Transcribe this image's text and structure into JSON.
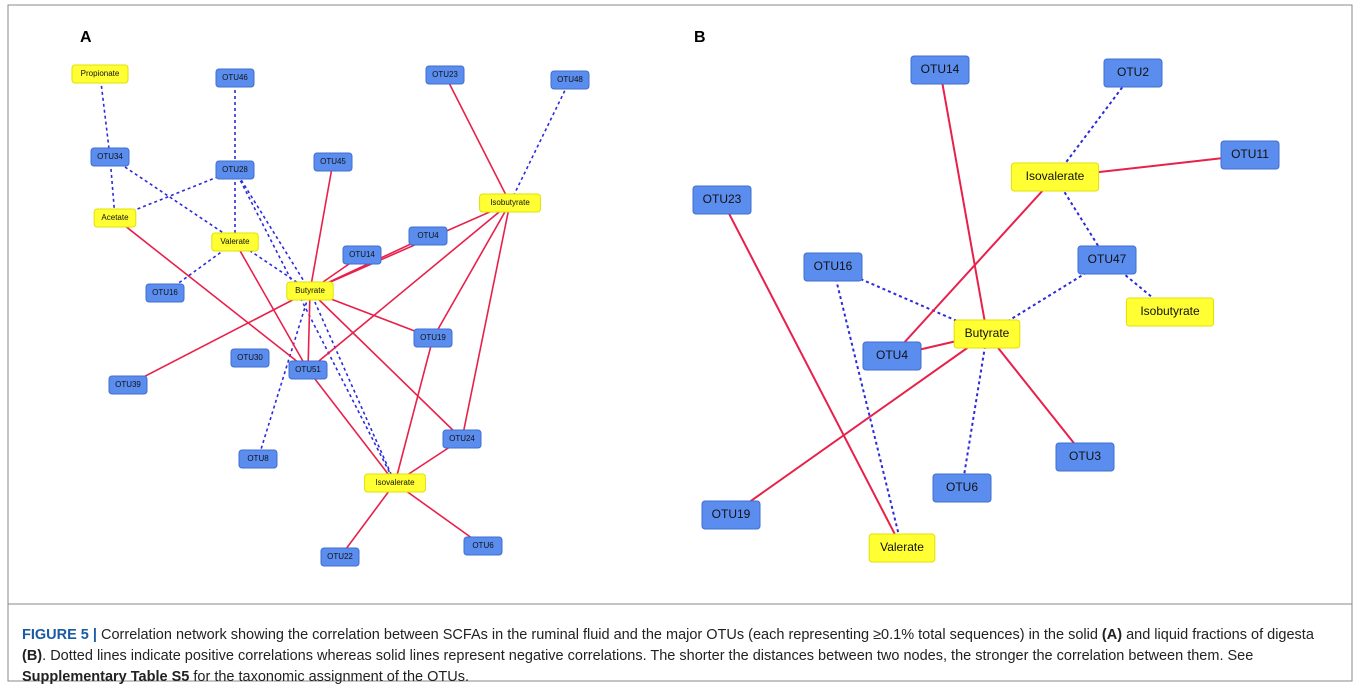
{
  "panels": [
    {
      "label": "A",
      "nodes": [
        {
          "label": "Propionate",
          "color": "#ffff33"
        },
        {
          "label": "OTU46",
          "color": "#5b8def"
        },
        {
          "label": "OTU23",
          "color": "#5b8def"
        },
        {
          "label": "OTU48",
          "color": "#5b8def"
        },
        {
          "label": "OTU34",
          "color": "#5b8def"
        },
        {
          "label": "OTU28",
          "color": "#5b8def"
        },
        {
          "label": "OTU45",
          "color": "#5b8def"
        },
        {
          "label": "Isobutyrate",
          "color": "#ffff33"
        },
        {
          "label": "Acetate",
          "color": "#ffff33"
        },
        {
          "label": "Valerate",
          "color": "#ffff33"
        },
        {
          "label": "OTU4",
          "color": "#5b8def"
        },
        {
          "label": "OTU14",
          "color": "#5b8def"
        },
        {
          "label": "Butyrate",
          "color": "#ffff33"
        },
        {
          "label": "OTU16",
          "color": "#5b8def"
        },
        {
          "label": "OTU19",
          "color": "#5b8def"
        },
        {
          "label": "OTU30",
          "color": "#5b8def"
        },
        {
          "label": "OTU51",
          "color": "#5b8def"
        },
        {
          "label": "OTU39",
          "color": "#5b8def"
        },
        {
          "label": "OTU24",
          "color": "#5b8def"
        },
        {
          "label": "OTU8",
          "color": "#5b8def"
        },
        {
          "label": "Isovalerate",
          "color": "#ffff33"
        },
        {
          "label": "OTU6",
          "color": "#5b8def"
        },
        {
          "label": "OTU22",
          "color": "#5b8def"
        }
      ]
    },
    {
      "label": "B",
      "nodes": [
        {
          "label": "OTU14",
          "color": "#5b8def"
        },
        {
          "label": "OTU2",
          "color": "#5b8def"
        },
        {
          "label": "OTU11",
          "color": "#5b8def"
        },
        {
          "label": "Isovalerate",
          "color": "#ffff33"
        },
        {
          "label": "OTU23",
          "color": "#5b8def"
        },
        {
          "label": "OTU16",
          "color": "#5b8def"
        },
        {
          "label": "OTU47",
          "color": "#5b8def"
        },
        {
          "label": "Isobutyrate",
          "color": "#ffff33"
        },
        {
          "label": "Butyrate",
          "color": "#ffff33"
        },
        {
          "label": "OTU4",
          "color": "#5b8def"
        },
        {
          "label": "OTU3",
          "color": "#5b8def"
        },
        {
          "label": "OTU6",
          "color": "#5b8def"
        },
        {
          "label": "OTU19",
          "color": "#5b8def"
        },
        {
          "label": "Valerate",
          "color": "#ffff33"
        }
      ]
    }
  ],
  "caption": [
    {
      "text": "FIGURE 5 |",
      "bold": true
    },
    {
      "text": " Correlation network showing the correlation between SCFAs in the ruminal fluid and the major OTUs (each representing ≥0.1% total sequences) in the solid ",
      "bold": false
    },
    {
      "text": "(A)",
      "bold": true
    },
    {
      "text": " and liquid fractions of digesta ",
      "bold": false
    },
    {
      "text": "(B)",
      "bold": true
    },
    {
      "text": ". Dotted lines indicate positive correlations whereas solid lines represent negative correlations. The shorter the distances between two nodes, the stronger the correlation between them. See ",
      "bold": false
    },
    {
      "text": "Supplementary Table S5",
      "bold": true
    },
    {
      "text": " for the taxonomic assignment of the OTUs.",
      "bold": false
    }
  ]
}
